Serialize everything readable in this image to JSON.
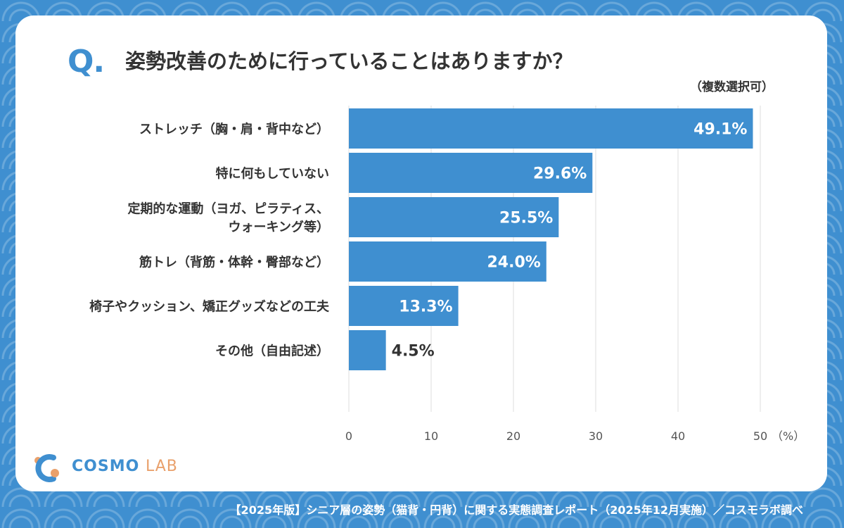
{
  "title": "姿勢改善のために行っていることはありますか？",
  "question_mark": "Q.",
  "note": "（複数選択可）",
  "chart_data": {
    "type": "bar",
    "orientation": "horizontal",
    "categories": [
      [
        "ストレッチ（胸・肩・背中など）"
      ],
      [
        "特に何もしていない"
      ],
      [
        "定期的な運動（ヨガ、ピラティス、",
        "ウォーキング等）"
      ],
      [
        "筋トレ（背筋・体幹・臀部など）"
      ],
      [
        "椅子やクッション、矯正グッズなどの工夫"
      ],
      [
        "その他（自由記述）"
      ]
    ],
    "values": [
      49.1,
      29.6,
      25.5,
      24.0,
      13.3,
      4.5
    ],
    "value_labels": [
      "49.1%",
      "29.6%",
      "25.5%",
      "24.0%",
      "13.3%",
      "4.5%"
    ],
    "xlim": [
      0,
      50
    ],
    "xticks": [
      "0",
      "10",
      "20",
      "30",
      "40",
      "50"
    ],
    "x_unit": "（%）",
    "grid": true,
    "bar_color": "#3f8fd0"
  },
  "footer": "【2025年版】シニア層の姿勢（猫背・円背）に関する実態調査レポート（2025年12月実施）／コスモラボ調べ",
  "logo": {
    "main": "COSMO",
    "accent": "LAB"
  },
  "colors": {
    "accent": "#3f8fd0",
    "logo_accent": "#e9a06b",
    "text": "#333333"
  }
}
